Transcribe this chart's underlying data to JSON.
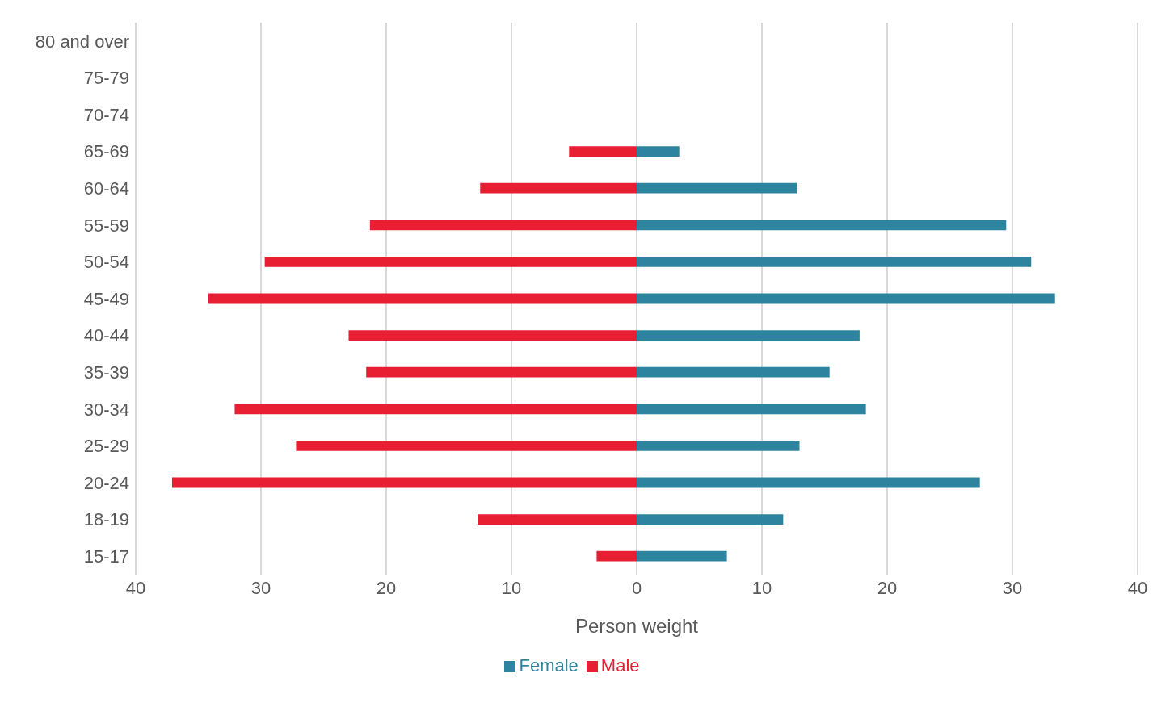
{
  "chart_data": {
    "type": "bar",
    "orientation": "horizontal",
    "stacked": true,
    "xlabel": "Person weight",
    "categories": [
      "80 and over",
      "75-79",
      "70-74",
      "65-69",
      "60-64",
      "55-59",
      "50-54",
      "45-49",
      "40-44",
      "35-39",
      "30-34",
      "25-29",
      "20-24",
      "18-19",
      "15-17"
    ],
    "series": [
      {
        "name": "Female",
        "color": "#2e849e",
        "values": [
          0,
          0,
          0,
          3.4,
          12.8,
          29.5,
          31.5,
          33.4,
          17.8,
          15.4,
          18.3,
          13.0,
          27.4,
          11.7,
          7.2
        ]
      },
      {
        "name": "Male",
        "color": "#e81f32",
        "values": [
          0,
          0,
          0,
          -5.4,
          -12.5,
          -21.3,
          -29.7,
          -34.2,
          -23.0,
          -21.6,
          -32.1,
          -27.2,
          -37.1,
          -12.7,
          -3.2
        ]
      }
    ],
    "xlim": [
      -40,
      40
    ],
    "xticks": [
      {
        "value": -40,
        "label": "40"
      },
      {
        "value": -30,
        "label": "30"
      },
      {
        "value": -20,
        "label": "20"
      },
      {
        "value": -10,
        "label": "10"
      },
      0,
      10,
      20,
      30,
      40
    ],
    "grid": "x",
    "legend": "bottom"
  }
}
